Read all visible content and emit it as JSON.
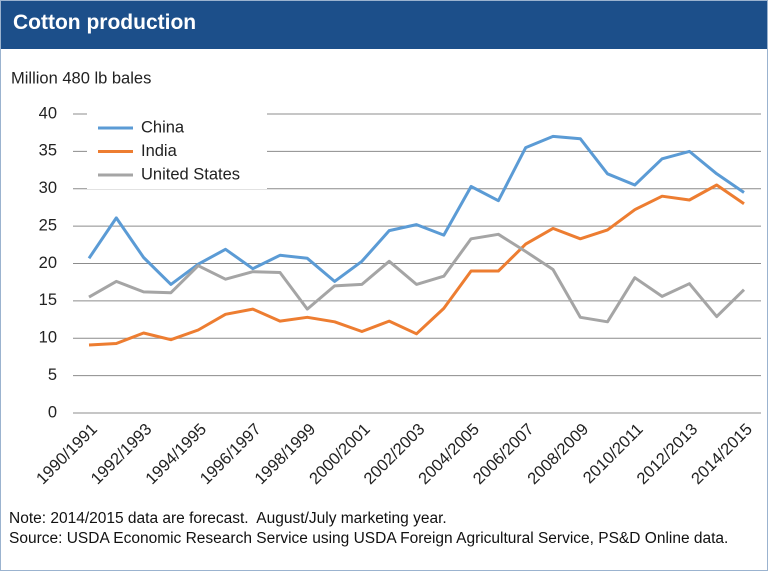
{
  "chart_data": {
    "type": "line",
    "title": "Cotton production",
    "y_label": "Million 480 lb bales",
    "categories": [
      "1990/1991",
      null,
      "1992/1993",
      null,
      "1994/1995",
      null,
      "1996/1997",
      null,
      "1998/1999",
      null,
      "2000/2001",
      null,
      "2002/2003",
      null,
      "2004/2005",
      null,
      "2006/2007",
      null,
      "2008/2009",
      null,
      "2010/2011",
      null,
      "2012/2013",
      null,
      "2014/2015"
    ],
    "series": [
      {
        "name": "China",
        "color": "#5b9bd5",
        "values": [
          20.7,
          26.1,
          20.8,
          17.2,
          19.9,
          21.9,
          19.3,
          21.1,
          20.7,
          17.6,
          20.3,
          24.4,
          25.2,
          23.8,
          30.3,
          28.4,
          35.5,
          37.0,
          36.7,
          32.0,
          30.5,
          34.0,
          35.0,
          32.0,
          29.5
        ]
      },
      {
        "name": "India",
        "color": "#ed7d31",
        "values": [
          9.1,
          9.3,
          10.7,
          9.8,
          11.1,
          13.2,
          13.9,
          12.3,
          12.8,
          12.2,
          10.9,
          12.3,
          10.6,
          14.0,
          19.0,
          19.0,
          22.6,
          24.7,
          23.3,
          24.5,
          27.2,
          29.0,
          28.5,
          30.5,
          28.0
        ]
      },
      {
        "name": "United States",
        "color": "#a5a5a5",
        "values": [
          15.5,
          17.6,
          16.2,
          16.1,
          19.7,
          17.9,
          18.9,
          18.8,
          13.9,
          17.0,
          17.2,
          20.3,
          17.2,
          18.3,
          23.3,
          23.9,
          21.6,
          19.2,
          12.8,
          12.2,
          18.1,
          15.6,
          17.3,
          12.9,
          16.5
        ]
      }
    ],
    "ylim": [
      0,
      40
    ],
    "yticks": [
      0,
      5,
      10,
      15,
      20,
      25,
      30,
      35,
      40
    ],
    "grid": true,
    "legend": "top-left",
    "notes": [
      "Note: 2014/2015 data are forecast.  August/July marketing year.",
      "Source: USDA Economic Research Service using USDA Foreign Agricultural Service, PS&D Online data."
    ]
  }
}
